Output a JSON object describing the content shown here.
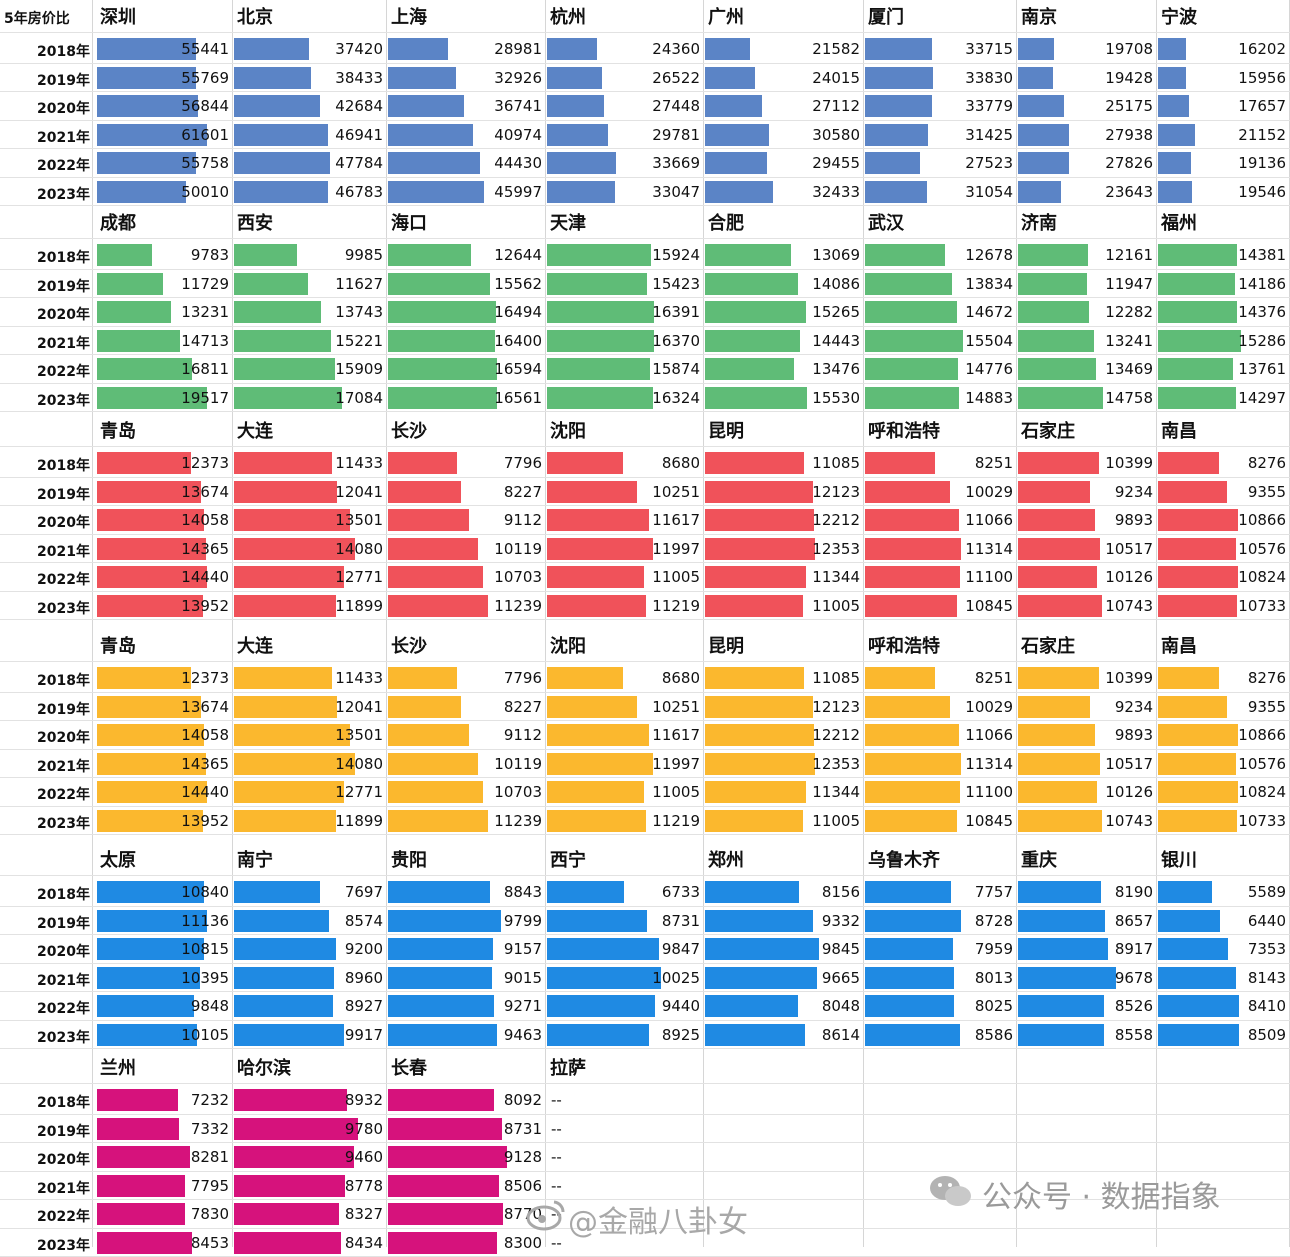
{
  "corner_label": "5年房价比",
  "watermark_wechat": "公众号 · 数据指象",
  "watermark_weibo": "@金融八卦女",
  "missing_mark": "--",
  "chart_data": {
    "type": "bar",
    "orientation": "horizontal",
    "years": [
      "2018年",
      "2019年",
      "2020年",
      "2021年",
      "2022年",
      "2023年"
    ],
    "groups": [
      {
        "color": "#5b84c6",
        "cities": [
          {
            "name": "深圳",
            "values": [
              55441,
              55769,
              56844,
              61601,
              55758,
              50010
            ]
          },
          {
            "name": "北京",
            "values": [
              37420,
              38433,
              42684,
              46941,
              47784,
              46783
            ]
          },
          {
            "name": "上海",
            "values": [
              28981,
              32926,
              36741,
              40974,
              44430,
              45997
            ]
          },
          {
            "name": "杭州",
            "values": [
              24360,
              26522,
              27448,
              29781,
              33669,
              33047
            ]
          },
          {
            "name": "广州",
            "values": [
              21582,
              24015,
              27112,
              30580,
              29455,
              32433
            ]
          },
          {
            "name": "厦门",
            "values": [
              33715,
              33830,
              33779,
              31425,
              27523,
              31054
            ]
          },
          {
            "name": "南京",
            "values": [
              19708,
              19428,
              25175,
              27938,
              27826,
              23643
            ]
          },
          {
            "name": "宁波",
            "values": [
              16202,
              15956,
              17657,
              21152,
              19136,
              19546
            ]
          }
        ]
      },
      {
        "color": "#5fbc77",
        "cities": [
          {
            "name": "成都",
            "values": [
              9783,
              11729,
              13231,
              14713,
              16811,
              19517
            ]
          },
          {
            "name": "西安",
            "values": [
              9985,
              11627,
              13743,
              15221,
              15909,
              17084
            ]
          },
          {
            "name": "海口",
            "values": [
              12644,
              15562,
              16494,
              16400,
              16594,
              16561
            ]
          },
          {
            "name": "天津",
            "values": [
              15924,
              15423,
              16391,
              16370,
              15874,
              16324
            ]
          },
          {
            "name": "合肥",
            "values": [
              13069,
              14086,
              15265,
              14443,
              13476,
              15530
            ]
          },
          {
            "name": "武汉",
            "values": [
              12678,
              13834,
              14672,
              15504,
              14776,
              14883
            ]
          },
          {
            "name": "济南",
            "values": [
              12161,
              11947,
              12282,
              13241,
              13469,
              14758
            ]
          },
          {
            "name": "福州",
            "values": [
              14381,
              14186,
              14376,
              15286,
              13761,
              14297
            ]
          }
        ]
      },
      {
        "color": "#f0525a",
        "cities": [
          {
            "name": "青岛",
            "values": [
              12373,
              13674,
              14058,
              14365,
              14440,
              13952
            ]
          },
          {
            "name": "大连",
            "values": [
              11433,
              12041,
              13501,
              14080,
              12771,
              11899
            ]
          },
          {
            "name": "长沙",
            "values": [
              7796,
              8227,
              9112,
              10119,
              10703,
              11239
            ]
          },
          {
            "name": "沈阳",
            "values": [
              8680,
              10251,
              11617,
              11997,
              11005,
              11219
            ]
          },
          {
            "name": "昆明",
            "values": [
              11085,
              12123,
              12212,
              12353,
              11344,
              11005
            ]
          },
          {
            "name": "呼和浩特",
            "values": [
              8251,
              10029,
              11066,
              11314,
              11100,
              10845
            ]
          },
          {
            "name": "石家庄",
            "values": [
              10399,
              9234,
              9893,
              10517,
              10126,
              10743
            ]
          },
          {
            "name": "南昌",
            "values": [
              8276,
              9355,
              10866,
              10576,
              10824,
              10733
            ]
          }
        ]
      },
      {
        "color": "#fbb82e",
        "cities": [
          {
            "name": "青岛",
            "values": [
              12373,
              13674,
              14058,
              14365,
              14440,
              13952
            ]
          },
          {
            "name": "大连",
            "values": [
              11433,
              12041,
              13501,
              14080,
              12771,
              11899
            ]
          },
          {
            "name": "长沙",
            "values": [
              7796,
              8227,
              9112,
              10119,
              10703,
              11239
            ]
          },
          {
            "name": "沈阳",
            "values": [
              8680,
              10251,
              11617,
              11997,
              11005,
              11219
            ]
          },
          {
            "name": "昆明",
            "values": [
              11085,
              12123,
              12212,
              12353,
              11344,
              11005
            ]
          },
          {
            "name": "呼和浩特",
            "values": [
              8251,
              10029,
              11066,
              11314,
              11100,
              10845
            ]
          },
          {
            "name": "石家庄",
            "values": [
              10399,
              9234,
              9893,
              10517,
              10126,
              10743
            ]
          },
          {
            "name": "南昌",
            "values": [
              8276,
              9355,
              10866,
              10576,
              10824,
              10733
            ]
          }
        ]
      },
      {
        "color": "#1f8ae3",
        "cities": [
          {
            "name": "太原",
            "values": [
              10840,
              11136,
              10815,
              10395,
              9848,
              10105
            ]
          },
          {
            "name": "南宁",
            "values": [
              7697,
              8574,
              9200,
              8960,
              8927,
              9917
            ]
          },
          {
            "name": "贵阳",
            "values": [
              8843,
              9799,
              9157,
              9015,
              9271,
              9463
            ]
          },
          {
            "name": "西宁",
            "values": [
              6733,
              8731,
              9847,
              10025,
              9440,
              8925
            ]
          },
          {
            "name": "郑州",
            "values": [
              8156,
              9332,
              9845,
              9665,
              8048,
              8614
            ]
          },
          {
            "name": "乌鲁木齐",
            "values": [
              7757,
              8728,
              7959,
              8013,
              8025,
              8586
            ]
          },
          {
            "name": "重庆",
            "values": [
              8190,
              8657,
              8917,
              9678,
              8526,
              8558
            ]
          },
          {
            "name": "银川",
            "values": [
              5589,
              6440,
              7353,
              8143,
              8410,
              8509
            ]
          }
        ]
      },
      {
        "color": "#d6127c",
        "cities": [
          {
            "name": "兰州",
            "values": [
              7232,
              7332,
              8281,
              7795,
              7830,
              8453
            ]
          },
          {
            "name": "哈尔滨",
            "values": [
              8932,
              9780,
              9460,
              8778,
              8327,
              8434
            ]
          },
          {
            "name": "长春",
            "values": [
              8092,
              8731,
              9128,
              8506,
              8770,
              8300
            ]
          },
          {
            "name": "拉萨",
            "values": [
              null,
              null,
              null,
              null,
              null,
              null
            ]
          }
        ]
      }
    ]
  }
}
